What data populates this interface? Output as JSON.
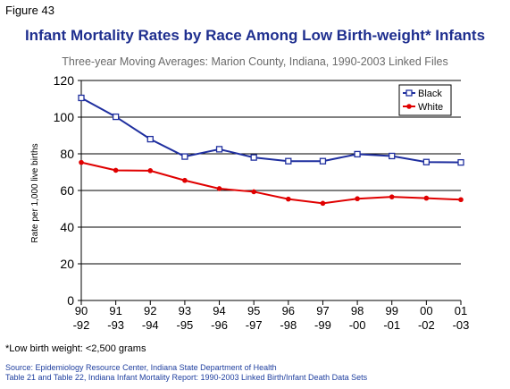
{
  "figure_label": "Figure 43",
  "chart_data": {
    "type": "line",
    "title": "Infant Mortality Rates by Race Among Low Birth-weight* Infants",
    "subtitle": "Three-year Moving Averages: Marion County, Indiana, 1990-2003 Linked Files",
    "ylabel": "Rate per 1,000 live births",
    "xlabel": "",
    "ylim": [
      0,
      120
    ],
    "yticks": [
      0,
      20,
      40,
      60,
      80,
      100,
      120
    ],
    "grid": true,
    "legend_position": "top-right",
    "categories": [
      [
        "90",
        "-92"
      ],
      [
        "91",
        "-93"
      ],
      [
        "92",
        "-94"
      ],
      [
        "93",
        "-95"
      ],
      [
        "94",
        "-96"
      ],
      [
        "95",
        "-97"
      ],
      [
        "96",
        "-98"
      ],
      [
        "97",
        "-99"
      ],
      [
        "98",
        "-00"
      ],
      [
        "99",
        "-01"
      ],
      [
        "00",
        "-02"
      ],
      [
        "01",
        "-03"
      ]
    ],
    "series": [
      {
        "name": "Black",
        "color": "#1f2f9f",
        "marker": "open-square",
        "values": [
          110.5,
          100.2,
          88.0,
          78.5,
          82.5,
          78.0,
          76.0,
          76.0,
          79.8,
          78.8,
          75.5,
          75.3
        ]
      },
      {
        "name": "White",
        "color": "#e00000",
        "marker": "filled-circle",
        "values": [
          75.3,
          71.0,
          70.8,
          65.5,
          61.0,
          59.3,
          55.3,
          53.0,
          55.5,
          56.5,
          55.8,
          55.0
        ]
      }
    ]
  },
  "footnote": "*Low birth weight: <2,500 grams",
  "source_lines": [
    "Source: Epidemiology Resource Center, Indiana State Department of Health",
    "Table 21 and Table 22, Indiana Infant Mortality Report: 1990-2003 Linked Birth/Infant Death Data Sets"
  ]
}
